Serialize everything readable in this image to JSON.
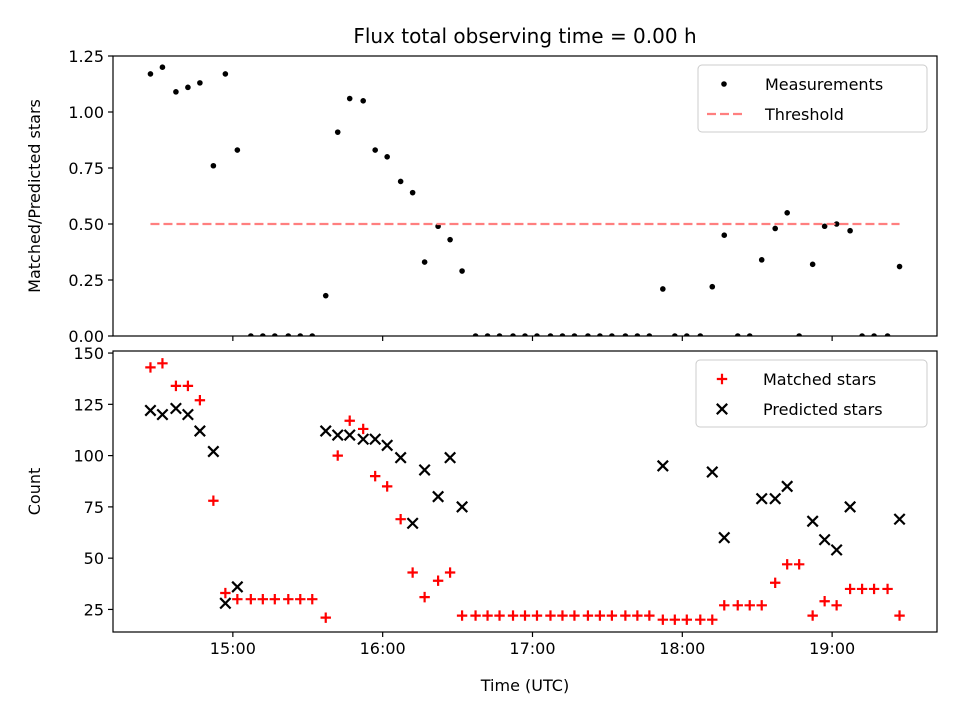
{
  "figure": {
    "title": "Flux total observing time = 0.00 h"
  },
  "chart_data": [
    {
      "type": "scatter",
      "panel": "top",
      "xlabel": "",
      "ylabel": "Matched/Predicted stars",
      "xlim": [
        14.2,
        19.7
      ],
      "ylim": [
        0.0,
        1.25
      ],
      "x_ticks": [
        15,
        16,
        17,
        18,
        19
      ],
      "x_tick_labels": [
        "",
        "",
        "",
        "",
        ""
      ],
      "y_ticks": [
        0.0,
        0.25,
        0.5,
        0.75,
        1.0,
        1.25
      ],
      "y_tick_labels": [
        "0.00",
        "0.25",
        "0.50",
        "0.75",
        "1.00",
        "1.25"
      ],
      "grid": false,
      "legend_position": "top-right",
      "legend": [
        {
          "label": "Measurements",
          "marker": "dot",
          "color": "#000000"
        },
        {
          "label": "Threshold",
          "marker": "dashed-line",
          "color": "#ff7f7f"
        }
      ],
      "series": [
        {
          "name": "Measurements",
          "marker": "dot",
          "color": "#000000",
          "points": [
            [
              14.45,
              1.17
            ],
            [
              14.53,
              1.2
            ],
            [
              14.62,
              1.09
            ],
            [
              14.7,
              1.11
            ],
            [
              14.78,
              1.13
            ],
            [
              14.87,
              0.76
            ],
            [
              14.95,
              1.17
            ],
            [
              15.03,
              0.83
            ],
            [
              15.12,
              0.0
            ],
            [
              15.2,
              0.0
            ],
            [
              15.28,
              0.0
            ],
            [
              15.37,
              0.0
            ],
            [
              15.45,
              0.0
            ],
            [
              15.53,
              0.0
            ],
            [
              15.62,
              0.18
            ],
            [
              15.7,
              0.91
            ],
            [
              15.78,
              1.06
            ],
            [
              15.87,
              1.05
            ],
            [
              15.95,
              0.83
            ],
            [
              16.03,
              0.8
            ],
            [
              16.12,
              0.69
            ],
            [
              16.2,
              0.64
            ],
            [
              16.28,
              0.33
            ],
            [
              16.37,
              0.49
            ],
            [
              16.45,
              0.43
            ],
            [
              16.53,
              0.29
            ],
            [
              16.62,
              0.0
            ],
            [
              16.7,
              0.0
            ],
            [
              16.78,
              0.0
            ],
            [
              16.87,
              0.0
            ],
            [
              16.95,
              0.0
            ],
            [
              17.03,
              0.0
            ],
            [
              17.12,
              0.0
            ],
            [
              17.2,
              0.0
            ],
            [
              17.28,
              0.0
            ],
            [
              17.37,
              0.0
            ],
            [
              17.45,
              0.0
            ],
            [
              17.53,
              0.0
            ],
            [
              17.62,
              0.0
            ],
            [
              17.7,
              0.0
            ],
            [
              17.78,
              0.0
            ],
            [
              17.87,
              0.21
            ],
            [
              17.95,
              0.0
            ],
            [
              18.03,
              0.0
            ],
            [
              18.12,
              0.0
            ],
            [
              18.2,
              0.22
            ],
            [
              18.28,
              0.45
            ],
            [
              18.37,
              0.0
            ],
            [
              18.45,
              0.0
            ],
            [
              18.53,
              0.34
            ],
            [
              18.62,
              0.48
            ],
            [
              18.7,
              0.55
            ],
            [
              18.78,
              0.0
            ],
            [
              18.87,
              0.32
            ],
            [
              18.95,
              0.49
            ],
            [
              19.03,
              0.5
            ],
            [
              19.12,
              0.47
            ],
            [
              19.2,
              0.0
            ],
            [
              19.28,
              0.0
            ],
            [
              19.37,
              0.0
            ],
            [
              19.45,
              0.31
            ]
          ]
        },
        {
          "name": "Threshold",
          "marker": "dashed-line",
          "color": "#ff7f7f",
          "points": [
            [
              14.45,
              0.5
            ],
            [
              19.45,
              0.5
            ]
          ]
        }
      ]
    },
    {
      "type": "scatter",
      "panel": "bottom",
      "xlabel": "Time (UTC)",
      "ylabel": "Count",
      "xlim": [
        14.2,
        19.7
      ],
      "ylim": [
        14.0,
        151.0
      ],
      "x_ticks": [
        15,
        16,
        17,
        18,
        19
      ],
      "x_tick_labels": [
        "15:00",
        "16:00",
        "17:00",
        "18:00",
        "19:00"
      ],
      "y_ticks": [
        25,
        50,
        75,
        100,
        125,
        150
      ],
      "y_tick_labels": [
        "25",
        "50",
        "75",
        "100",
        "125",
        "150"
      ],
      "grid": false,
      "legend_position": "top-right",
      "legend": [
        {
          "label": "Matched stars",
          "marker": "plus",
          "color": "#ff0000"
        },
        {
          "label": "Predicted stars",
          "marker": "x",
          "color": "#000000"
        }
      ],
      "series": [
        {
          "name": "Matched stars",
          "marker": "plus",
          "color": "#ff0000",
          "points": [
            [
              14.45,
              143
            ],
            [
              14.53,
              145
            ],
            [
              14.62,
              134
            ],
            [
              14.7,
              134
            ],
            [
              14.78,
              127
            ],
            [
              14.87,
              78
            ],
            [
              14.95,
              33
            ],
            [
              15.03,
              30
            ],
            [
              15.12,
              30
            ],
            [
              15.2,
              30
            ],
            [
              15.28,
              30
            ],
            [
              15.37,
              30
            ],
            [
              15.45,
              30
            ],
            [
              15.53,
              30
            ],
            [
              15.62,
              21
            ],
            [
              15.7,
              100
            ],
            [
              15.78,
              117
            ],
            [
              15.87,
              113
            ],
            [
              15.95,
              90
            ],
            [
              16.03,
              85
            ],
            [
              16.12,
              69
            ],
            [
              16.2,
              43
            ],
            [
              16.28,
              31
            ],
            [
              16.37,
              39
            ],
            [
              16.45,
              43
            ],
            [
              16.53,
              22
            ],
            [
              16.62,
              22
            ],
            [
              16.7,
              22
            ],
            [
              16.78,
              22
            ],
            [
              16.87,
              22
            ],
            [
              16.95,
              22
            ],
            [
              17.03,
              22
            ],
            [
              17.12,
              22
            ],
            [
              17.2,
              22
            ],
            [
              17.28,
              22
            ],
            [
              17.37,
              22
            ],
            [
              17.45,
              22
            ],
            [
              17.53,
              22
            ],
            [
              17.62,
              22
            ],
            [
              17.7,
              22
            ],
            [
              17.78,
              22
            ],
            [
              17.87,
              20
            ],
            [
              17.95,
              20
            ],
            [
              18.03,
              20
            ],
            [
              18.12,
              20
            ],
            [
              18.2,
              20
            ],
            [
              18.28,
              27
            ],
            [
              18.37,
              27
            ],
            [
              18.45,
              27
            ],
            [
              18.53,
              27
            ],
            [
              18.62,
              38
            ],
            [
              18.7,
              47
            ],
            [
              18.78,
              47
            ],
            [
              18.87,
              22
            ],
            [
              18.95,
              29
            ],
            [
              19.03,
              27
            ],
            [
              19.12,
              35
            ],
            [
              19.2,
              35
            ],
            [
              19.28,
              35
            ],
            [
              19.37,
              35
            ],
            [
              19.45,
              22
            ]
          ]
        },
        {
          "name": "Predicted stars",
          "marker": "x",
          "color": "#000000",
          "points": [
            [
              14.45,
              122
            ],
            [
              14.53,
              120
            ],
            [
              14.62,
              123
            ],
            [
              14.7,
              120
            ],
            [
              14.78,
              112
            ],
            [
              14.87,
              102
            ],
            [
              14.95,
              28
            ],
            [
              15.03,
              36
            ],
            [
              15.62,
              112
            ],
            [
              15.7,
              110
            ],
            [
              15.78,
              110
            ],
            [
              15.87,
              108
            ],
            [
              15.95,
              108
            ],
            [
              16.03,
              105
            ],
            [
              16.12,
              99
            ],
            [
              16.2,
              67
            ],
            [
              16.28,
              93
            ],
            [
              16.37,
              80
            ],
            [
              16.45,
              99
            ],
            [
              16.53,
              75
            ],
            [
              17.87,
              95
            ],
            [
              18.2,
              92
            ],
            [
              18.28,
              60
            ],
            [
              18.53,
              79
            ],
            [
              18.62,
              79
            ],
            [
              18.7,
              85
            ],
            [
              18.87,
              68
            ],
            [
              18.95,
              59
            ],
            [
              19.03,
              54
            ],
            [
              19.12,
              75
            ],
            [
              19.45,
              69
            ]
          ]
        }
      ]
    }
  ]
}
